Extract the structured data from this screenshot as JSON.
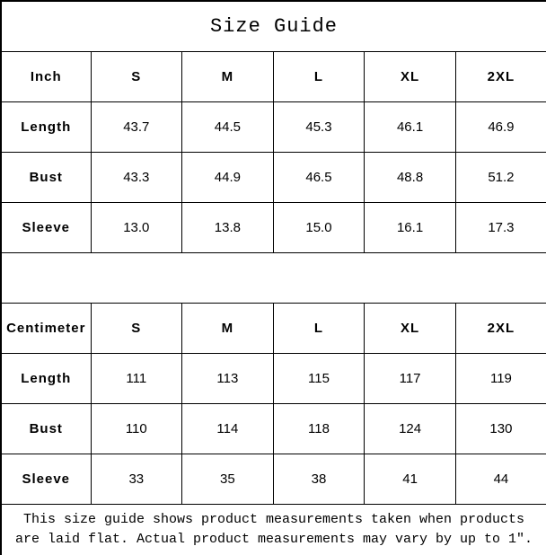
{
  "title": "Size Guide",
  "chart_data": [
    {
      "type": "table",
      "title": "Size Guide",
      "unit_label": "Inch",
      "size_headers": [
        "S",
        "M",
        "L",
        "XL",
        "2XL"
      ],
      "rows": [
        {
          "label": "Length",
          "values": [
            "43.7",
            "44.5",
            "45.3",
            "46.1",
            "46.9"
          ]
        },
        {
          "label": "Bust",
          "values": [
            "43.3",
            "44.9",
            "46.5",
            "48.8",
            "51.2"
          ]
        },
        {
          "label": "Sleeve",
          "values": [
            "13.0",
            "13.8",
            "15.0",
            "16.1",
            "17.3"
          ]
        }
      ]
    },
    {
      "type": "table",
      "unit_label": "Centimeter",
      "size_headers": [
        "S",
        "M",
        "L",
        "XL",
        "2XL"
      ],
      "rows": [
        {
          "label": "Length",
          "values": [
            "111",
            "113",
            "115",
            "117",
            "119"
          ]
        },
        {
          "label": "Bust",
          "values": [
            "110",
            "114",
            "118",
            "124",
            "130"
          ]
        },
        {
          "label": "Sleeve",
          "values": [
            "33",
            "35",
            "38",
            "41",
            "44"
          ]
        }
      ]
    }
  ],
  "footer": {
    "line1": "This size guide shows product measurements taken when products",
    "line2": "are laid flat. Actual product measurements may vary by up to 1″."
  },
  "colors": {
    "border": "#000000",
    "text": "#000000",
    "background": "#ffffff"
  }
}
